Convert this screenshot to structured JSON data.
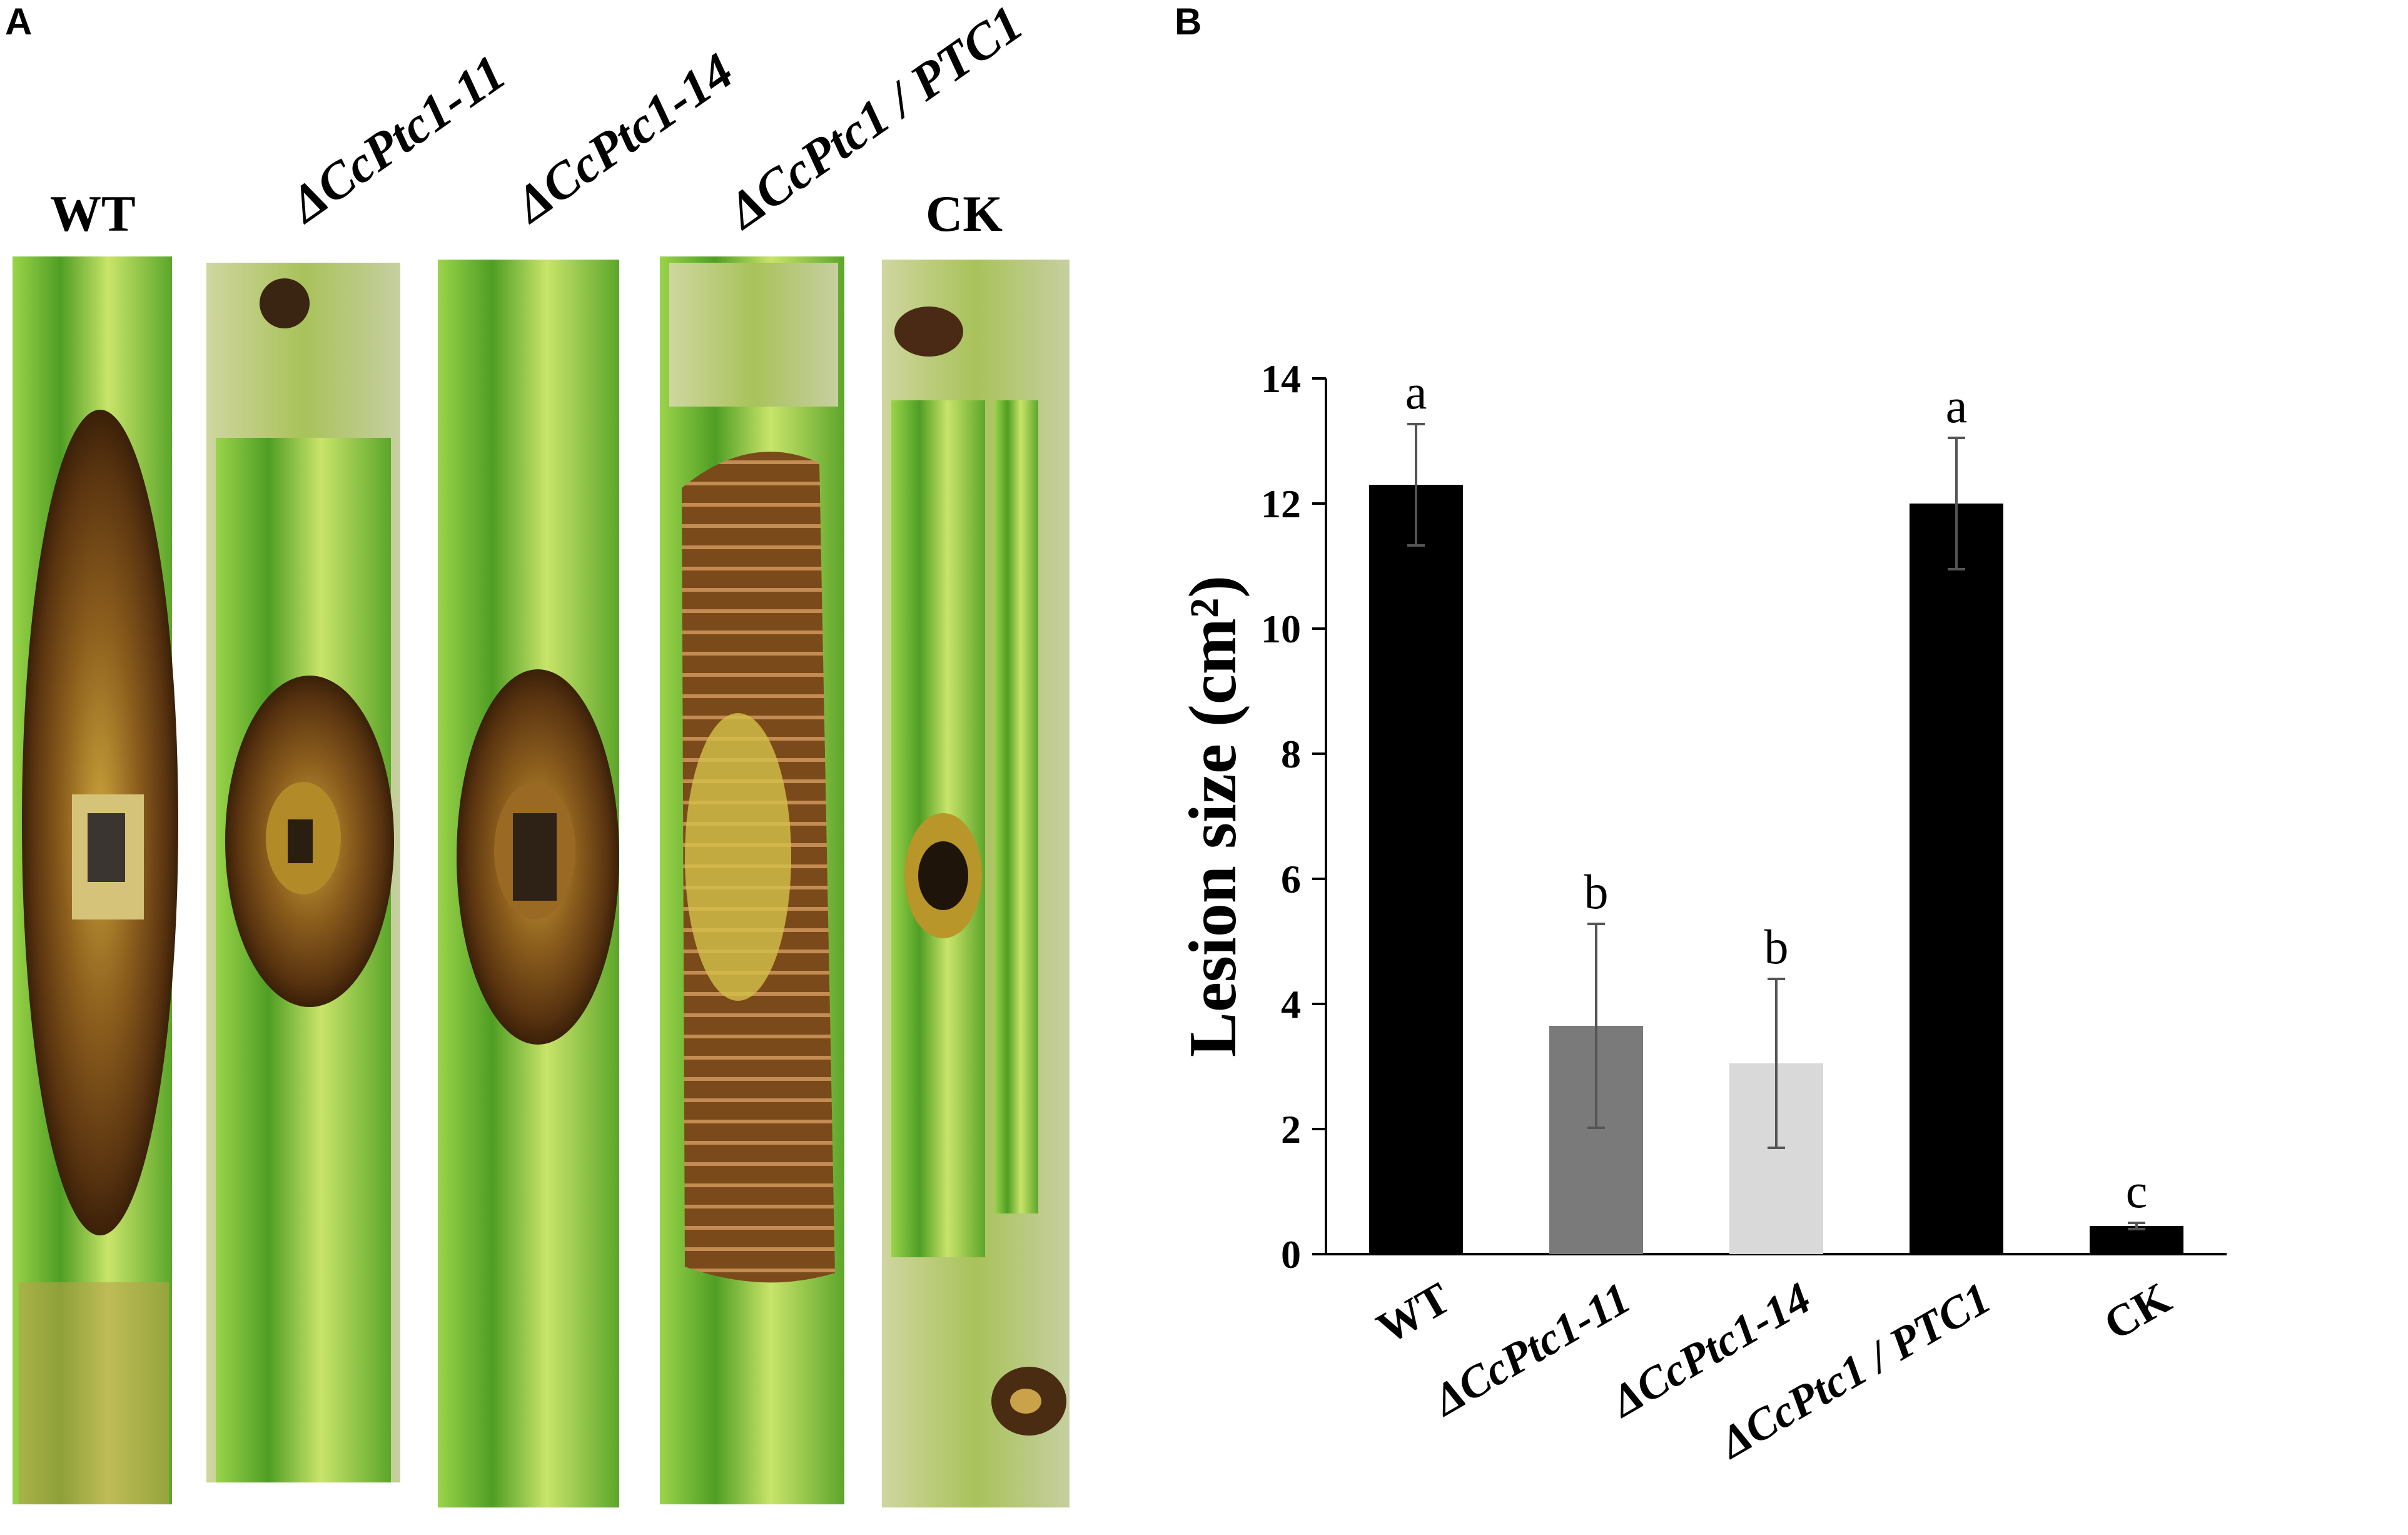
{
  "panels": {
    "a": "A",
    "b": "B"
  },
  "photo_labels": [
    "WT",
    "ΔCcPtc1-11",
    "ΔCcPtc1-14",
    "ΔCcPtc1 / PTC1",
    "CK"
  ],
  "colors": {
    "stem_green": "#7fc33a",
    "lesion_brown": "#7a4a1a",
    "bar_black": "#000000",
    "bar_dark_gray": "#7a7a7a",
    "bar_light_gray": "#d9d9d9"
  },
  "chart_data": {
    "type": "bar",
    "categories": [
      "WT",
      "ΔCcPtc1-11",
      "ΔCcPtc1-14",
      "ΔCcPtc1 / PTC1",
      "CK"
    ],
    "values": [
      12.3,
      3.65,
      3.05,
      12.0,
      0.45
    ],
    "errors": [
      0.97,
      1.63,
      1.35,
      1.05,
      0.05
    ],
    "significance": [
      "a",
      "b",
      "b",
      "a",
      "c"
    ],
    "bar_colors": [
      "#000000",
      "#7a7a7a",
      "#d9d9d9",
      "#000000",
      "#000000"
    ],
    "ylabel": "Lesion size (cm²)",
    "ylim": [
      0,
      14
    ],
    "yticks": [
      0,
      2,
      4,
      6,
      8,
      10,
      12,
      14
    ],
    "grid": false
  }
}
